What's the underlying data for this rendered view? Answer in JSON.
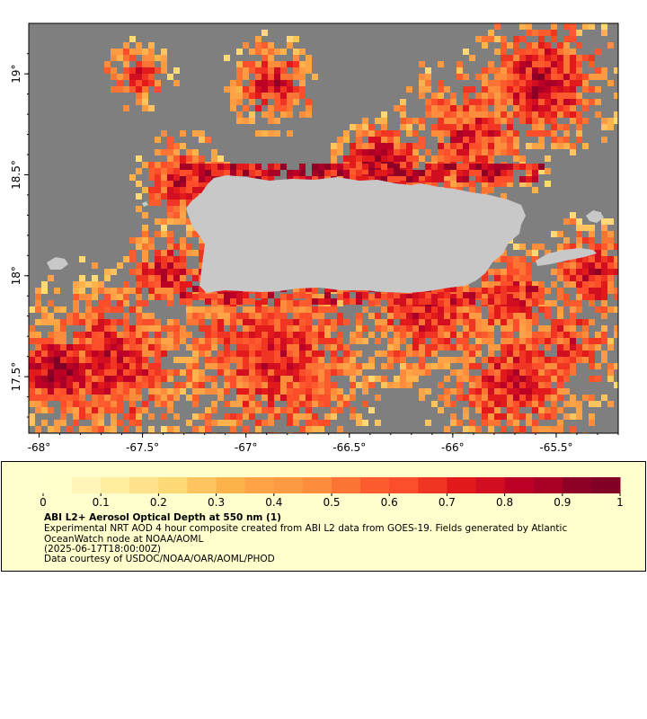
{
  "map": {
    "region": "Puerto Rico",
    "lon_range": [
      -68.05,
      -65.2
    ],
    "lat_range": [
      17.22,
      19.25
    ],
    "x_ticks": [
      "-68°",
      "-67.5°",
      "-67°",
      "-66.5°",
      "-66°",
      "-65.5°"
    ],
    "x_tick_values": [
      -68,
      -67.5,
      -67,
      -66.5,
      -66,
      -65.5
    ],
    "y_ticks": [
      "19°",
      "18.5°",
      "18°",
      "17.5°"
    ],
    "y_tick_values": [
      19,
      18.5,
      18,
      17.5
    ],
    "colors": {
      "no_data": "#7f7f7f",
      "land": "#c8c8c8"
    }
  },
  "legend": {
    "tick_labels": [
      "0",
      "0.1",
      "0.2",
      "0.3",
      "0.4",
      "0.5",
      "0.6",
      "0.7",
      "0.8",
      "0.9",
      "1"
    ],
    "range": [
      0,
      1
    ],
    "title": "ABI L2+ Aerosol Optical Depth at 550 nm (1)",
    "description": "Experimental NRT AOD 4 hour composite created from ABI L2 data from GOES-19. Fields generated by Atlantic OceanWatch node at NOAA/AOML",
    "time": "(2025-06-17T18:00:00Z)",
    "credit": "Data courtesy of USDOC/NOAA/OAR/AOML/PHOD",
    "colors": [
      "#ffffcc",
      "#fff5b8",
      "#ffeda0",
      "#fee18a",
      "#fed976",
      "#fec460",
      "#feb24c",
      "#fea446",
      "#fd9a42",
      "#fd8d3c",
      "#fc7434",
      "#fc5b2e",
      "#fc4e2a",
      "#f03523",
      "#e31a1c",
      "#d20f21",
      "#bd0026",
      "#a80026",
      "#8e0026",
      "#800026"
    ]
  }
}
